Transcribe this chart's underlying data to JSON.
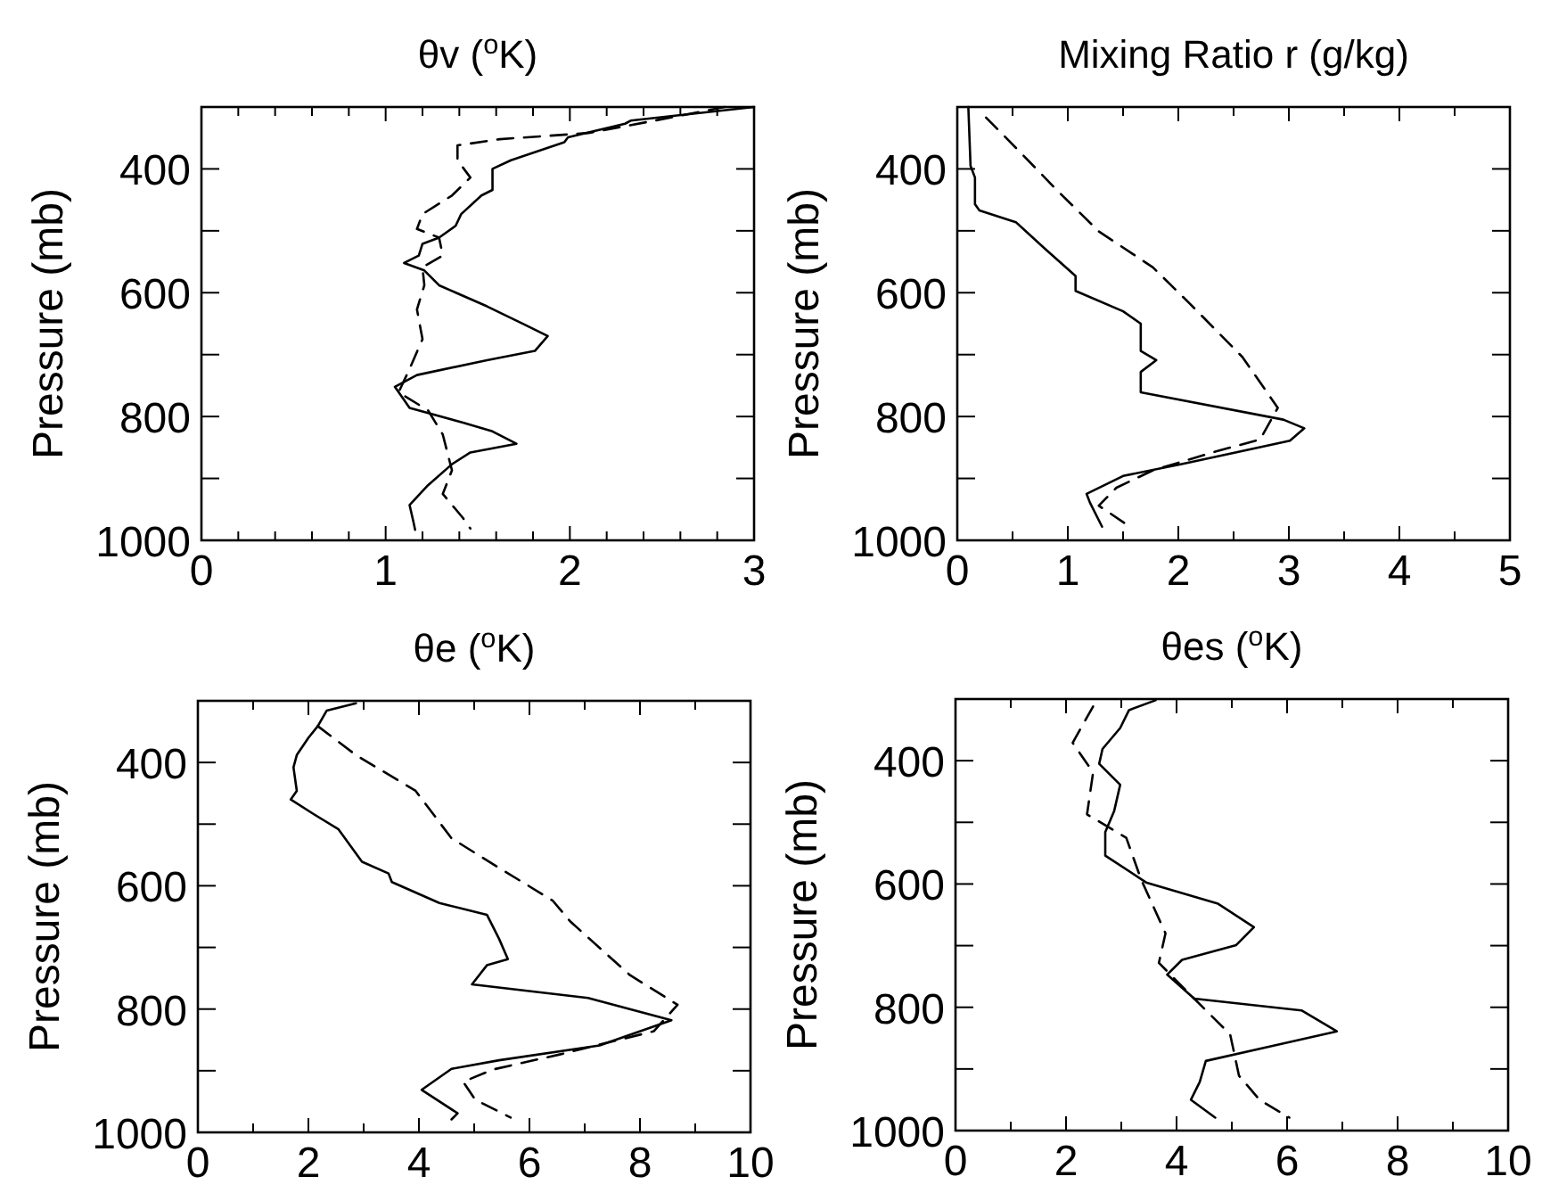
{
  "chart_data": [
    {
      "type": "line",
      "title": "θv ($^{o}$K)",
      "ylabel": "Pressure (mb)",
      "xlim": [
        0,
        3
      ],
      "ylim": [
        1000,
        300
      ],
      "xticks": [
        0,
        {
          "value": 0.2,
          "label": null
        },
        {
          "value": 0.4,
          "label": null
        },
        {
          "value": 0.6,
          "label": null
        },
        {
          "value": 0.8,
          "label": null
        },
        1,
        {
          "value": 1.2,
          "label": null
        },
        {
          "value": 1.4,
          "label": null
        },
        {
          "value": 1.6,
          "label": null
        },
        {
          "value": 1.8,
          "label": null
        },
        2,
        {
          "value": 2.2,
          "label": null
        },
        {
          "value": 2.4,
          "label": null
        },
        {
          "value": 2.6,
          "label": null
        },
        {
          "value": 2.8,
          "label": null
        },
        3
      ],
      "yticks": [
        400,
        {
          "value": 500,
          "label": null
        },
        600,
        {
          "value": 700,
          "label": null
        },
        800,
        {
          "value": 900,
          "label": null
        },
        1000
      ],
      "grid": false,
      "series": [
        {
          "color": "#000000",
          "line_style": "solid",
          "x": [
            3.0,
            2.33,
            2.3,
            1.99,
            1.97,
            1.68,
            1.58,
            1.58,
            1.52,
            1.41,
            1.38,
            1.29,
            1.2,
            1.18,
            1.1,
            1.21,
            1.29,
            1.55,
            1.75,
            1.88,
            1.81,
            1.55,
            1.17,
            1.05,
            1.13,
            1.42,
            1.58,
            1.71,
            1.46,
            1.36,
            1.23,
            1.13,
            1.15,
            1.16
          ],
          "values": [
            300,
            322,
            327,
            349,
            357,
            386,
            400,
            434,
            443,
            473,
            492,
            511,
            521,
            540,
            552,
            564,
            588,
            622,
            651,
            670,
            694,
            709,
            733,
            752,
            786,
            810,
            824,
            844,
            858,
            877,
            911,
            943,
            969,
            983
          ]
        },
        {
          "color": "#000000",
          "line_style": "dashed",
          "x": [
            2.84,
            2.46,
            2.1,
            1.62,
            1.39,
            1.39,
            1.46,
            1.36,
            1.2,
            1.17,
            1.29,
            1.31,
            1.2,
            1.21,
            1.17,
            1.2,
            1.13,
            1.07,
            1.23,
            1.31,
            1.36,
            1.31,
            1.42,
            1.46
          ],
          "values": [
            300,
            322,
            342,
            352,
            362,
            386,
            414,
            443,
            473,
            497,
            511,
            540,
            559,
            588,
            627,
            675,
            723,
            761,
            790,
            829,
            887,
            925,
            964,
            981
          ]
        }
      ]
    },
    {
      "type": "line",
      "title": "Mixing Ratio r (g/kg)",
      "ylabel": "Pressure (mb)",
      "xlim": [
        0,
        5
      ],
      "ylim": [
        1000,
        300
      ],
      "xticks": [
        0,
        {
          "value": 0.5,
          "label": null
        },
        1,
        {
          "value": 1.5,
          "label": null
        },
        2,
        {
          "value": 2.5,
          "label": null
        },
        3,
        {
          "value": 3.5,
          "label": null
        },
        4,
        {
          "value": 4.5,
          "label": null
        },
        5
      ],
      "yticks": [
        400,
        {
          "value": 500,
          "label": null
        },
        600,
        {
          "value": 700,
          "label": null
        },
        800,
        {
          "value": 900,
          "label": null
        },
        1000
      ],
      "grid": false,
      "series": [
        {
          "color": "#000000",
          "line_style": "solid",
          "x": [
            0.1,
            0.12,
            0.16,
            0.16,
            0.2,
            0.53,
            0.8,
            1.07,
            1.07,
            1.5,
            1.66,
            1.66,
            1.8,
            1.66,
            1.66,
            2.95,
            3.14,
            3.01,
            2.03,
            1.5,
            1.17,
            1.2,
            1.31
          ],
          "values": [
            300,
            395,
            414,
            457,
            467,
            486,
            530,
            573,
            597,
            630,
            650,
            694,
            709,
            728,
            761,
            805,
            819,
            839,
            877,
            896,
            925,
            939,
            978
          ]
        },
        {
          "color": "#000000",
          "line_style": "dashed",
          "x": [
            0.26,
            0.58,
            0.9,
            1.28,
            1.77,
            2.1,
            2.31,
            2.58,
            2.9,
            2.74,
            2.31,
            1.77,
            1.44,
            1.28,
            1.52
          ],
          "values": [
            317,
            375,
            434,
            501,
            559,
            617,
            655,
            704,
            786,
            837,
            858,
            887,
            915,
            944,
            973
          ]
        }
      ]
    },
    {
      "type": "line",
      "title": "θe ($^{o}$K)",
      "ylabel": "Pressure (mb)",
      "xlim": [
        0,
        10
      ],
      "ylim": [
        1000,
        300
      ],
      "xticks": [
        0,
        {
          "value": 1,
          "label": null
        },
        2,
        {
          "value": 3,
          "label": null
        },
        4,
        {
          "value": 5,
          "label": null
        },
        6,
        {
          "value": 7,
          "label": null
        },
        8,
        {
          "value": 9,
          "label": null
        },
        10
      ],
      "yticks": [
        400,
        {
          "value": 500,
          "label": null
        },
        600,
        {
          "value": 700,
          "label": null
        },
        800,
        {
          "value": 900,
          "label": null
        },
        1000
      ],
      "grid": false,
      "series": [
        {
          "color": "#000000",
          "line_style": "solid",
          "x": [
            2.86,
            2.33,
            2.17,
            2.0,
            1.79,
            1.73,
            1.79,
            1.68,
            2.1,
            2.54,
            2.97,
            3.45,
            3.51,
            4.37,
            5.23,
            5.45,
            5.61,
            5.23,
            4.96,
            7.06,
            8.57,
            7.27,
            5.45,
            4.59,
            4.05,
            4.7,
            4.59
          ],
          "values": [
            304,
            316,
            341,
            360,
            388,
            408,
            446,
            460,
            484,
            508,
            561,
            580,
            594,
            628,
            647,
            686,
            719,
            729,
            760,
            782,
            818,
            859,
            883,
            897,
            931,
            969,
            979
          ]
        },
        {
          "color": "#000000",
          "line_style": "dashed",
          "x": [
            2.17,
            2.86,
            3.94,
            4.59,
            5.45,
            6.42,
            6.74,
            7.82,
            8.68,
            8.25,
            6.53,
            5.34,
            4.8,
            5.02,
            5.66
          ],
          "values": [
            341,
            388,
            446,
            523,
            571,
            624,
            658,
            745,
            793,
            836,
            874,
            898,
            918,
            947,
            976
          ]
        }
      ]
    },
    {
      "type": "line",
      "title": "θes ($^{o}$K)",
      "ylabel": "Pressure (mb)",
      "xlim": [
        0,
        10
      ],
      "ylim": [
        1000,
        300
      ],
      "xticks": [
        0,
        {
          "value": 1,
          "label": null
        },
        2,
        {
          "value": 3,
          "label": null
        },
        4,
        {
          "value": 5,
          "label": null
        },
        6,
        {
          "value": 7,
          "label": null
        },
        8,
        {
          "value": 9,
          "label": null
        },
        10
      ],
      "yticks": [
        400,
        {
          "value": 500,
          "label": null
        },
        600,
        {
          "value": 700,
          "label": null
        },
        800,
        {
          "value": 900,
          "label": null
        },
        1000
      ],
      "grid": false,
      "series": [
        {
          "color": "#000000",
          "line_style": "solid",
          "x": [
            3.62,
            3.14,
            2.98,
            2.66,
            2.6,
            2.98,
            2.87,
            2.71,
            2.71,
            3.46,
            4.75,
            5.4,
            5.08,
            4.1,
            3.83,
            4.32,
            6.26,
            6.9,
            5.72,
            4.53,
            4.42,
            4.26,
            4.7
          ],
          "values": [
            302,
            318,
            347,
            381,
            405,
            439,
            482,
            516,
            554,
            598,
            632,
            670,
            699,
            723,
            747,
            786,
            805,
            839,
            863,
            887,
            921,
            950,
            979
          ]
        },
        {
          "color": "#000000",
          "line_style": "dashed",
          "x": [
            2.49,
            2.12,
            2.49,
            2.38,
            3.09,
            3.36,
            3.8,
            3.68,
            4.32,
            4.97,
            5.13,
            5.5,
            6.04
          ],
          "values": [
            312,
            371,
            419,
            487,
            525,
            593,
            680,
            728,
            786,
            844,
            911,
            950,
            979
          ]
        }
      ]
    }
  ]
}
